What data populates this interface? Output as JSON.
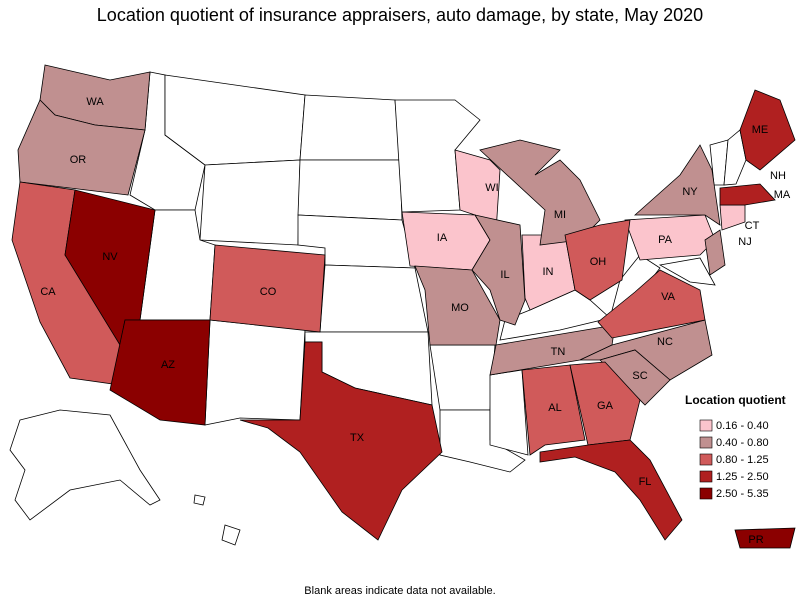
{
  "title": "Location quotient of insurance appraisers, auto damage, by state, May 2020",
  "legend": {
    "title": "Location quotient",
    "classes": [
      {
        "label": "0.16 - 0.40",
        "color": "#fbc4cc",
        "states": [
          "WI",
          "IA",
          "IN",
          "PA",
          "CT"
        ]
      },
      {
        "label": "0.40 - 0.80",
        "color": "#c09090",
        "states": [
          "WA",
          "OR",
          "MO",
          "IL",
          "MI",
          "TN",
          "NC",
          "SC",
          "NY",
          "NJ"
        ]
      },
      {
        "label": "0.80 - 1.25",
        "color": "#d05a5a",
        "states": [
          "CA",
          "CO",
          "OH",
          "VA",
          "AL",
          "GA"
        ]
      },
      {
        "label": "1.25 - 2.50",
        "color": "#b02020",
        "states": [
          "TX",
          "FL",
          "ME",
          "MA"
        ]
      },
      {
        "label": "2.50 - 5.35",
        "color": "#8b0000",
        "states": [
          "NV",
          "AZ",
          "PR"
        ]
      }
    ]
  },
  "other_labels": [
    "NH"
  ],
  "note": "Blank areas indicate data not available."
}
